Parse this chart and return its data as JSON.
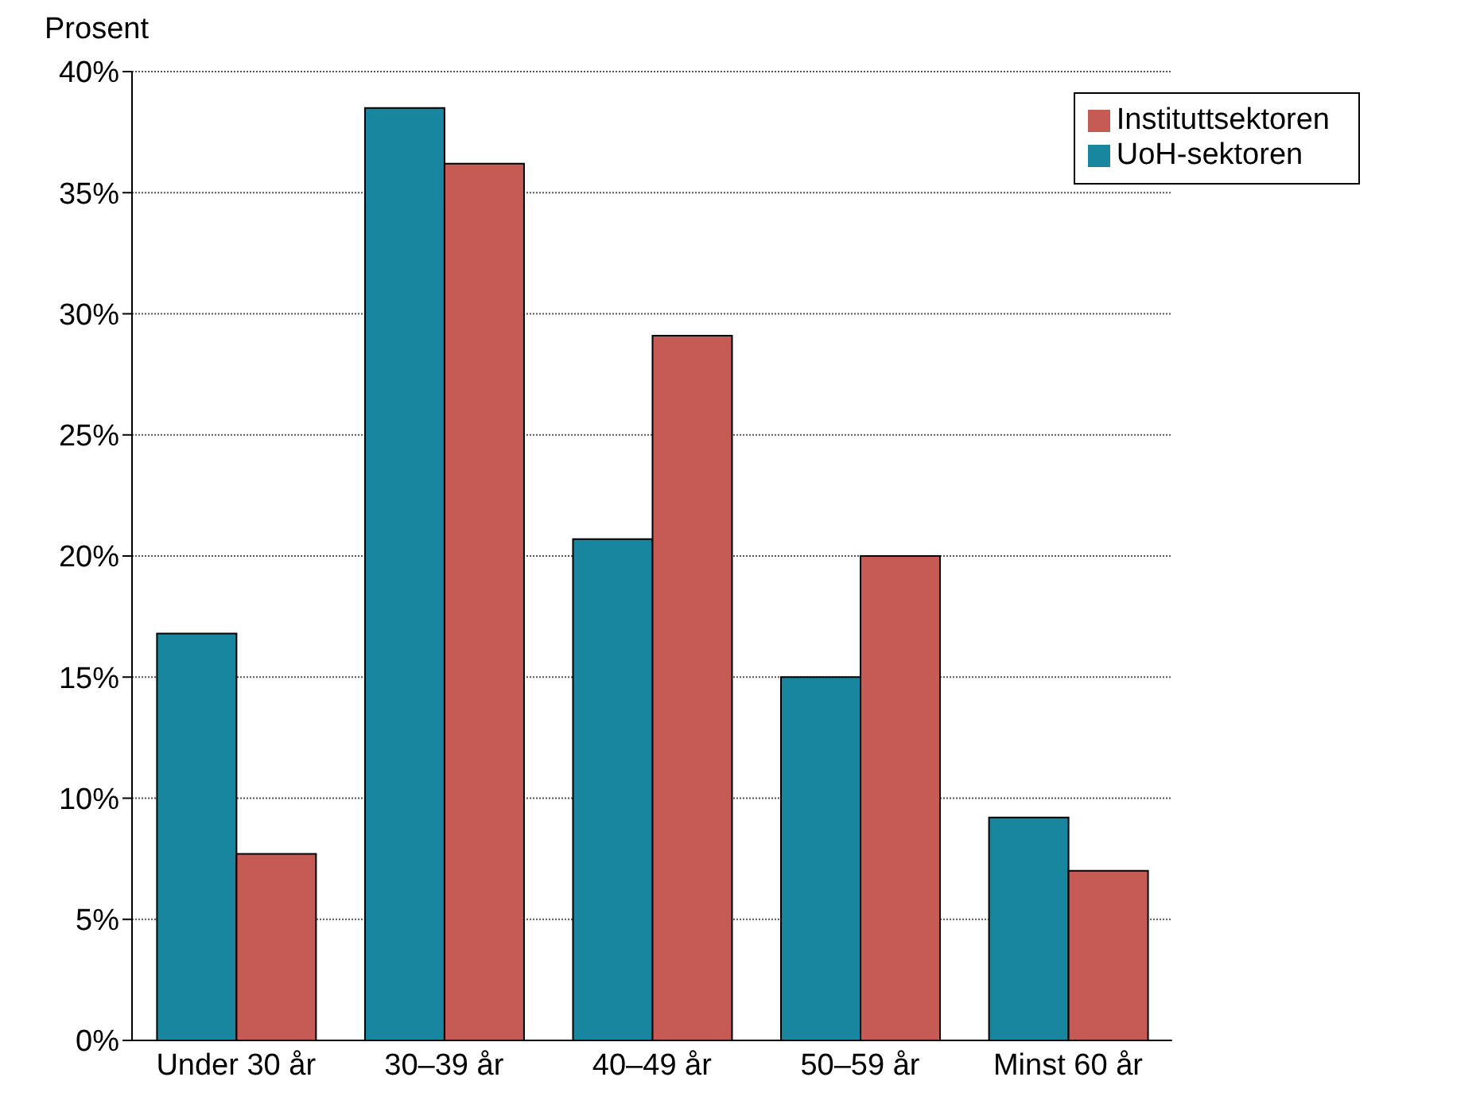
{
  "chart_data": {
    "type": "bar",
    "ylabel": "Prosent",
    "categories": [
      "Under 30 år",
      "30–39 år",
      "40–49 år",
      "50–59 år",
      "Minst 60 år"
    ],
    "series": [
      {
        "name": "UoH-sektoren",
        "color": "#17869e",
        "values": [
          16.8,
          38.5,
          20.7,
          15.0,
          9.2
        ]
      },
      {
        "name": "Instituttsektoren",
        "color": "#c65a55",
        "values": [
          7.7,
          36.2,
          29.1,
          20.0,
          7.0
        ]
      }
    ],
    "ylim": [
      0,
      40
    ],
    "yticks": [
      {
        "value": 0,
        "label": "0%"
      },
      {
        "value": 5,
        "label": "5%"
      },
      {
        "value": 10,
        "label": "10%"
      },
      {
        "value": 15,
        "label": "15%"
      },
      {
        "value": 20,
        "label": "20%"
      },
      {
        "value": 25,
        "label": "25%"
      },
      {
        "value": 30,
        "label": "30%"
      },
      {
        "value": 35,
        "label": "35%"
      },
      {
        "value": 40,
        "label": "40%"
      }
    ],
    "grid": "y",
    "legend": "top right"
  }
}
